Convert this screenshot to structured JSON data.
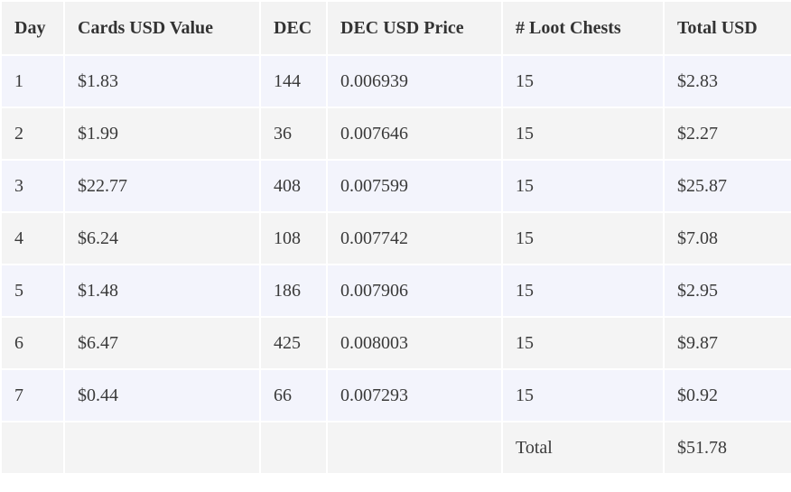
{
  "table": {
    "header": [
      "Day",
      "Cards USD Value",
      "DEC",
      "DEC USD Price",
      "# Loot Chests",
      "Total USD"
    ],
    "rows": [
      [
        "1",
        "$1.83",
        "144",
        "0.006939",
        "15",
        "$2.83"
      ],
      [
        "2",
        "$1.99",
        "36",
        "0.007646",
        "15",
        "$2.27"
      ],
      [
        "3",
        "$22.77",
        "408",
        "0.007599",
        "15",
        "$25.87"
      ],
      [
        "4",
        "$6.24",
        "108",
        "0.007742",
        "15",
        "$7.08"
      ],
      [
        "5",
        "$1.48",
        "186",
        "0.007906",
        "15",
        "$2.95"
      ],
      [
        "6",
        "$6.47",
        "425",
        "0.008003",
        "15",
        "$9.87"
      ],
      [
        "7",
        "$0.44",
        "66",
        "0.007293",
        "15",
        "$0.92"
      ]
    ],
    "total": {
      "label": "Total",
      "value": "$51.78"
    }
  }
}
